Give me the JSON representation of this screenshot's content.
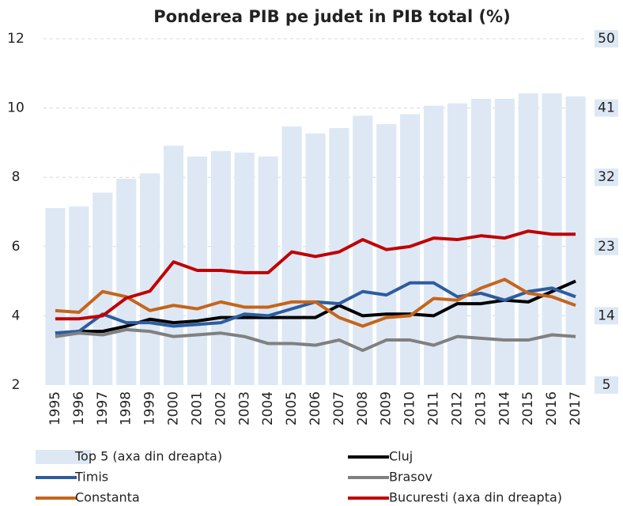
{
  "chart_data": {
    "type": "combo",
    "title": "Ponderea PIB pe judet in PIB total (%)",
    "categories": [
      "1995",
      "1996",
      "1997",
      "1998",
      "1999",
      "2000",
      "2001",
      "2002",
      "2003",
      "2004",
      "2005",
      "2006",
      "2007",
      "2008",
      "2009",
      "2010",
      "2011",
      "2012",
      "2013",
      "2014",
      "2015",
      "2016",
      "2017"
    ],
    "ylim": [
      2,
      12
    ],
    "yticks": [
      2,
      4,
      6,
      8,
      10,
      12
    ],
    "y2lim": [
      5,
      50
    ],
    "y2ticks": [
      5,
      14,
      23,
      32,
      41,
      50
    ],
    "grid": true,
    "series": [
      {
        "name": "Top 5 (axa din dreapta)",
        "type": "bar",
        "axis": "y2",
        "color": "#dde8f4",
        "values": [
          28.0,
          28.2,
          30.0,
          31.8,
          32.5,
          36.1,
          34.7,
          35.4,
          35.2,
          34.7,
          38.6,
          37.7,
          38.4,
          40.0,
          38.9,
          40.2,
          41.3,
          41.6,
          42.2,
          42.2,
          42.9,
          42.9,
          42.5
        ]
      },
      {
        "name": "Cluj",
        "type": "line",
        "color": "#000000",
        "values": [
          3.5,
          3.55,
          3.55,
          3.7,
          3.9,
          3.8,
          3.85,
          3.95,
          3.95,
          3.95,
          3.95,
          3.95,
          4.3,
          4.0,
          4.05,
          4.05,
          4.0,
          4.35,
          4.35,
          4.45,
          4.4,
          4.7,
          5.0
        ]
      },
      {
        "name": "Timis",
        "type": "line",
        "color": "#2e5c9e",
        "values": [
          3.5,
          3.55,
          4.05,
          3.8,
          3.8,
          3.7,
          3.75,
          3.8,
          4.05,
          4.0,
          4.2,
          4.4,
          4.35,
          4.7,
          4.6,
          4.95,
          4.95,
          4.55,
          4.65,
          4.45,
          4.7,
          4.8,
          4.55
        ]
      },
      {
        "name": "Brasov",
        "type": "line",
        "color": "#808080",
        "values": [
          3.4,
          3.5,
          3.45,
          3.6,
          3.55,
          3.4,
          3.45,
          3.5,
          3.4,
          3.2,
          3.2,
          3.15,
          3.3,
          3.0,
          3.3,
          3.3,
          3.15,
          3.4,
          3.35,
          3.3,
          3.3,
          3.45,
          3.4
        ]
      },
      {
        "name": "Constanta",
        "type": "line",
        "color": "#c5651c",
        "values": [
          4.15,
          4.1,
          4.7,
          4.55,
          4.15,
          4.3,
          4.2,
          4.4,
          4.25,
          4.25,
          4.4,
          4.4,
          3.95,
          3.7,
          3.95,
          4.0,
          4.5,
          4.45,
          4.8,
          5.05,
          4.65,
          4.55,
          4.3
        ]
      },
      {
        "name": "Bucuresti (axa din dreapta)",
        "type": "line",
        "axis": "y2",
        "color": "#c00000",
        "values": [
          13.6,
          13.6,
          14.0,
          16.3,
          17.2,
          21.0,
          19.9,
          19.9,
          19.6,
          19.6,
          22.3,
          21.7,
          22.3,
          23.9,
          22.6,
          23.0,
          24.1,
          23.9,
          24.4,
          24.1,
          25.0,
          24.6,
          24.6
        ]
      }
    ]
  }
}
